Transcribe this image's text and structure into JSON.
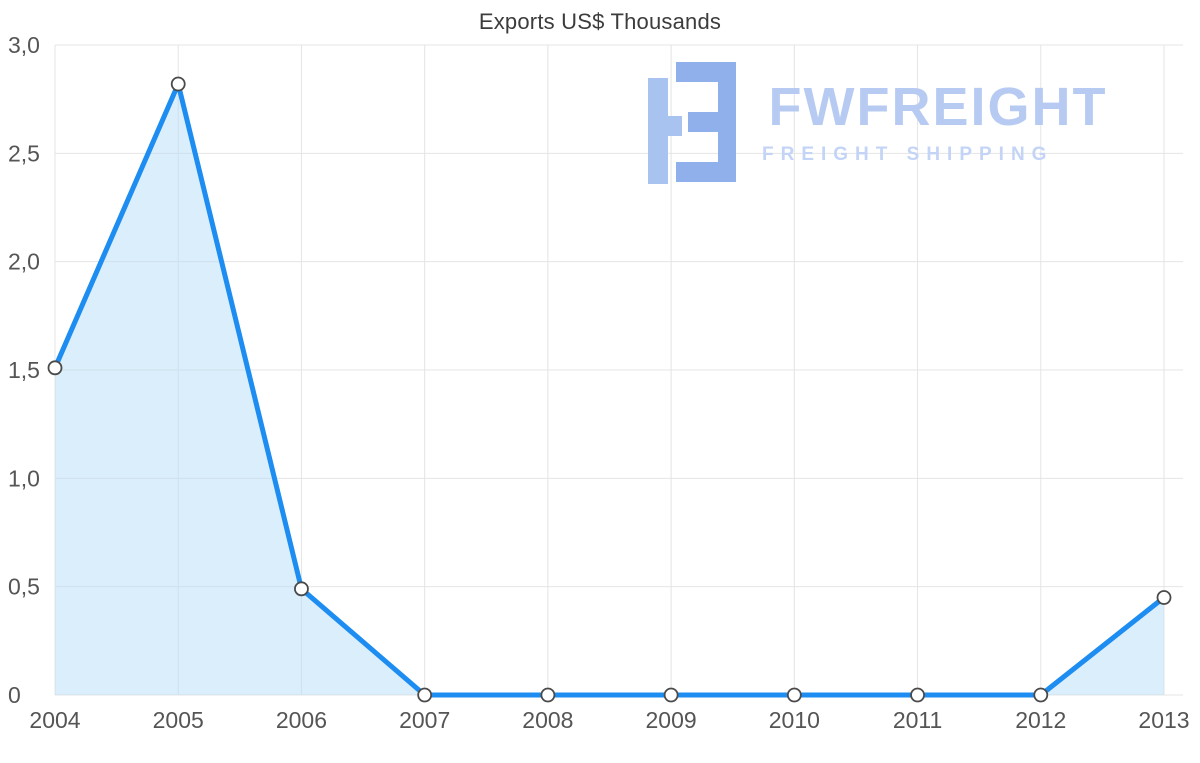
{
  "watermark": {
    "brand": "FWFREIGHT",
    "tagline": "FREIGHT SHIPPING",
    "brand_color": "#b7cbf2",
    "tagline_color": "#c3d4f6",
    "icon_color_primary": "#a9c3f1",
    "icon_color_secondary": "#8fb0ea"
  },
  "chart_data": {
    "type": "area",
    "title": "Exports US$ Thousands",
    "categories": [
      "2004",
      "2005",
      "2006",
      "2007",
      "2008",
      "2009",
      "2010",
      "2011",
      "2012",
      "2013"
    ],
    "values": [
      1.51,
      2.82,
      0.49,
      0,
      0,
      0,
      0,
      0,
      0,
      0.45
    ],
    "xlabel": "",
    "ylabel": "",
    "ylim": [
      0,
      3
    ],
    "yticks": [
      0,
      0.5,
      1,
      1.5,
      2,
      2.5,
      3
    ],
    "ytick_labels": [
      "0",
      "0,5",
      "1,0",
      "1,5",
      "2,0",
      "2,5",
      "3,0"
    ],
    "grid": true,
    "legend": false,
    "decimal_separator": ",",
    "colors": {
      "line": "#1d8df1",
      "fill": "#b8ddf8",
      "fill_opacity": 0.5,
      "grid": "#e4e4e4",
      "labels": "#555555",
      "title": "#3c3c3c",
      "marker_fill": "#ffffff",
      "marker_stroke": "#4a4a4a"
    }
  }
}
